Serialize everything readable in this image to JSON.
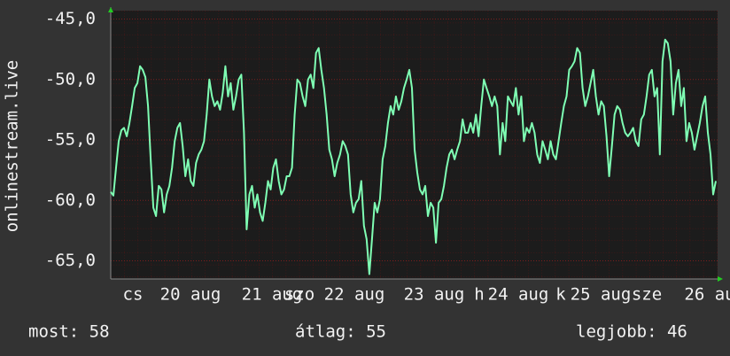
{
  "chart_data": {
    "type": "line",
    "ylabel": "onlinestream.live",
    "ylim": [
      -66.5,
      -44.3
    ],
    "yticks": [
      {
        "value": -45,
        "label": "-45,0"
      },
      {
        "value": -50,
        "label": "-50,0"
      },
      {
        "value": -55,
        "label": "-55,0"
      },
      {
        "value": -60,
        "label": "-60,0"
      },
      {
        "value": -65,
        "label": "-65,0"
      }
    ],
    "x_labels": [
      "cs",
      "20 aug",
      "21 aug",
      "szo",
      "22 aug",
      "23 aug",
      "h",
      "24 aug",
      "k",
      "25 aug",
      "sze",
      "26 au"
    ],
    "grid": true,
    "series": [
      {
        "color": "#7fffb4",
        "values": [
          -59.3,
          -59.6,
          -57.3,
          -55.1,
          -54.2,
          -54.0,
          -54.7,
          -53.6,
          -52.2,
          -50.7,
          -50.3,
          -48.9,
          -49.2,
          -49.8,
          -52.2,
          -56.6,
          -60.6,
          -61.3,
          -58.8,
          -59.1,
          -61.0,
          -59.5,
          -58.8,
          -57.3,
          -55.1,
          -54.0,
          -53.6,
          -55.5,
          -58.0,
          -56.6,
          -58.4,
          -58.8,
          -56.9,
          -56.2,
          -55.8,
          -55.1,
          -52.9,
          -50.0,
          -51.4,
          -52.2,
          -51.8,
          -52.5,
          -51.1,
          -48.9,
          -51.4,
          -50.3,
          -52.5,
          -51.4,
          -50.0,
          -49.6,
          -54.4,
          -62.4,
          -59.5,
          -58.8,
          -60.6,
          -59.5,
          -61.0,
          -61.7,
          -60.2,
          -58.4,
          -59.1,
          -57.3,
          -56.6,
          -58.4,
          -59.5,
          -59.1,
          -58.0,
          -58.0,
          -57.3,
          -52.9,
          -50.0,
          -50.3,
          -51.4,
          -52.2,
          -50.0,
          -49.6,
          -50.7,
          -47.8,
          -47.4,
          -49.2,
          -50.7,
          -52.9,
          -55.8,
          -56.6,
          -58.0,
          -56.9,
          -56.2,
          -55.1,
          -55.5,
          -56.2,
          -59.5,
          -61.0,
          -60.2,
          -59.9,
          -58.4,
          -62.1,
          -63.2,
          -66.1,
          -63.2,
          -60.2,
          -61.0,
          -59.9,
          -56.6,
          -55.5,
          -53.6,
          -52.2,
          -52.9,
          -51.4,
          -52.5,
          -51.8,
          -50.7,
          -50.0,
          -49.2,
          -50.7,
          -55.8,
          -57.7,
          -59.1,
          -59.5,
          -58.8,
          -61.3,
          -60.2,
          -60.6,
          -63.5,
          -60.2,
          -59.9,
          -58.8,
          -57.3,
          -56.2,
          -55.8,
          -56.6,
          -55.8,
          -55.1,
          -53.3,
          -54.4,
          -54.4,
          -53.6,
          -54.4,
          -52.9,
          -54.7,
          -52.2,
          -50.0,
          -50.7,
          -51.4,
          -52.2,
          -51.4,
          -52.2,
          -56.2,
          -53.6,
          -55.1,
          -51.4,
          -51.8,
          -52.2,
          -50.7,
          -52.9,
          -51.4,
          -55.1,
          -54.0,
          -54.4,
          -53.6,
          -54.4,
          -56.2,
          -56.9,
          -55.1,
          -55.8,
          -56.6,
          -55.1,
          -56.2,
          -56.6,
          -55.1,
          -53.6,
          -52.2,
          -51.4,
          -49.2,
          -48.9,
          -48.5,
          -47.4,
          -47.8,
          -50.7,
          -52.2,
          -51.4,
          -50.3,
          -49.2,
          -51.4,
          -52.9,
          -51.8,
          -52.2,
          -54.7,
          -58.0,
          -55.5,
          -52.9,
          -52.2,
          -52.5,
          -53.6,
          -54.4,
          -54.7,
          -54.4,
          -54.0,
          -55.1,
          -55.5,
          -53.3,
          -52.9,
          -51.4,
          -49.6,
          -49.2,
          -51.4,
          -50.7,
          -56.2,
          -48.5,
          -46.7,
          -47.0,
          -48.5,
          -52.9,
          -50.3,
          -49.2,
          -52.2,
          -50.7,
          -55.1,
          -53.6,
          -54.4,
          -55.8,
          -54.7,
          -53.6,
          -52.2,
          -51.4,
          -54.4,
          -56.2,
          -59.5,
          -58.4
        ]
      }
    ],
    "footer": [
      "most: 58",
      "átlag: 55",
      "legjobb: 46"
    ]
  }
}
